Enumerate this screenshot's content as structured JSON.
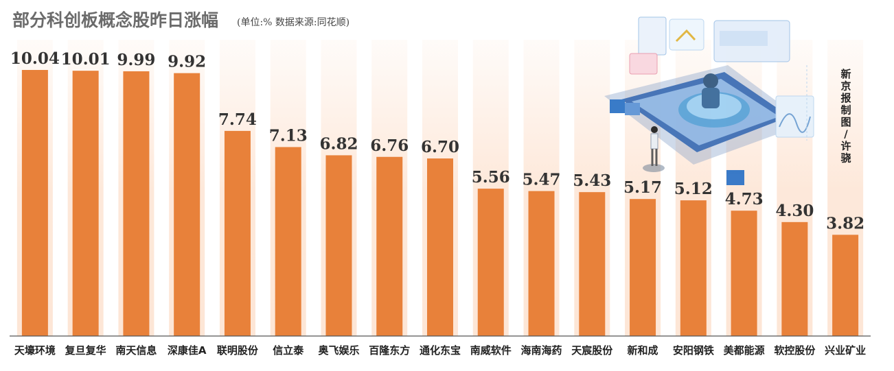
{
  "chart_data": {
    "type": "bar",
    "title": "部分科创板概念股昨日涨幅",
    "subtitle": "(单位:% 数据来源:同花顺)",
    "categories": [
      "天壕环境",
      "复旦复华",
      "南天信息",
      "深康佳A",
      "联明股份",
      "信立泰",
      "奥飞娱乐",
      "百隆东方",
      "通化东宝",
      "南威软件",
      "海南海药",
      "天宸股份",
      "新和成",
      "安阳钢铁",
      "美都能源",
      "软控股份",
      "兴业矿业"
    ],
    "values": [
      10.04,
      10.01,
      9.99,
      9.92,
      7.74,
      7.13,
      6.82,
      6.76,
      6.7,
      5.56,
      5.47,
      5.43,
      5.17,
      5.12,
      4.73,
      4.3,
      3.82
    ],
    "value_labels": [
      "10.04",
      "10.01",
      "9.99",
      "9.92",
      "7.74",
      "7.13",
      "6.82",
      "6.76",
      "6.70",
      "5.56",
      "5.47",
      "5.43",
      "5.17",
      "5.12",
      "4.73",
      "4.30",
      "3.82"
    ],
    "ylim": [
      0,
      10.04
    ],
    "grid": false,
    "legend": "none",
    "colors": {
      "bar": "#E8813A",
      "band": "#FDE6D6",
      "axis": "#555555"
    }
  },
  "credit": "新京报制图/许骁"
}
